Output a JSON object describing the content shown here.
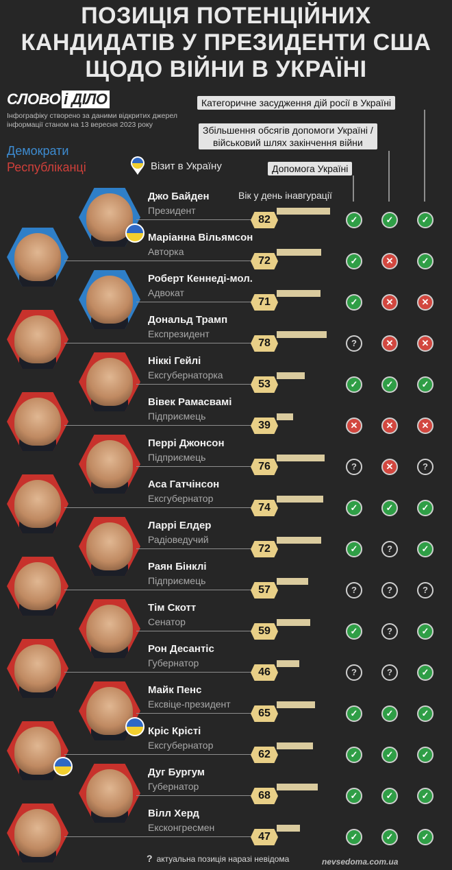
{
  "title": [
    "ПОЗИЦІЯ ПОТЕНЦІЙНИХ",
    "КАНДИДАТІВ У ПРЕЗИДЕНТИ США",
    "ЩОДО ВІЙНИ В УКРАЇНІ"
  ],
  "logo": {
    "part1": "СЛОВО",
    "part2": "і ДІЛО"
  },
  "source": [
    "Інфографіку створено за даними відкритих джерел",
    "інформації станом на 13 вересня 2023 року"
  ],
  "legend": {
    "democrats": "Демократи",
    "republicans": "Республіканці",
    "visit": "Візит в Україну"
  },
  "columns": {
    "condemn": "Категоричне засудження дій росії в Україні",
    "increase": [
      "Збільшення обсягів допомоги Україні /",
      "військовий шлях закінчення війни"
    ],
    "aid": "Допомога Україні",
    "age": "Вік у день інавгурації"
  },
  "colors": {
    "democrat": "#2f7fc8",
    "republican": "#c8322c",
    "yes": "#2f9e46",
    "no": "#d2473f",
    "age": "#e8cf87"
  },
  "candidates": [
    {
      "name": "Джо Байден",
      "role": "Президент",
      "party": "D",
      "age": "82",
      "visit": true,
      "aid": "yes",
      "increase": "yes",
      "condemn": "yes"
    },
    {
      "name": "Маріанна Вільямсон",
      "role": "Авторка",
      "party": "D",
      "age": "72",
      "visit": false,
      "aid": "yes",
      "increase": "no",
      "condemn": "yes"
    },
    {
      "name": "Роберт Кеннеді-мол.",
      "role": "Адвокат",
      "party": "D",
      "age": "71",
      "visit": false,
      "aid": "yes",
      "increase": "no",
      "condemn": "no"
    },
    {
      "name": "Дональд Трамп",
      "role": "Експрезидент",
      "party": "R",
      "age": "78",
      "visit": false,
      "aid": "unknown",
      "increase": "no",
      "condemn": "no"
    },
    {
      "name": "Ніккі Гейлі",
      "role": "Ексгубернаторка",
      "party": "R",
      "age": "53",
      "visit": false,
      "aid": "yes",
      "increase": "yes",
      "condemn": "yes"
    },
    {
      "name": "Вівек Рамасвамі",
      "role": "Підприємець",
      "party": "R",
      "age": "39",
      "visit": false,
      "aid": "no",
      "increase": "no",
      "condemn": "no"
    },
    {
      "name": "Перрі Джонсон",
      "role": "Підприємець",
      "party": "R",
      "age": "76",
      "visit": false,
      "aid": "unknown",
      "increase": "no",
      "condemn": "unknown"
    },
    {
      "name": "Аса Гатчінсон",
      "role": "Ексгубернатор",
      "party": "R",
      "age": "74",
      "visit": false,
      "aid": "yes",
      "increase": "yes",
      "condemn": "yes"
    },
    {
      "name": "Ларрі Елдер",
      "role": "Радіоведучий",
      "party": "R",
      "age": "72",
      "visit": false,
      "aid": "yes",
      "increase": "unknown",
      "condemn": "yes"
    },
    {
      "name": "Раян Бінклі",
      "role": "Підприємець",
      "party": "R",
      "age": "57",
      "visit": false,
      "aid": "unknown",
      "increase": "unknown",
      "condemn": "unknown"
    },
    {
      "name": "Тім Скотт",
      "role": "Сенатор",
      "party": "R",
      "age": "59",
      "visit": false,
      "aid": "yes",
      "increase": "unknown",
      "condemn": "yes"
    },
    {
      "name": "Рон Десантіс",
      "role": "Губернатор",
      "party": "R",
      "age": "46",
      "visit": false,
      "aid": "unknown",
      "increase": "unknown",
      "condemn": "yes"
    },
    {
      "name": "Майк Пенс",
      "role": "Ексвіце-президент",
      "party": "R",
      "age": "65",
      "visit": true,
      "aid": "yes",
      "increase": "yes",
      "condemn": "yes"
    },
    {
      "name": "Кріс Крісті",
      "role": "Ексгубернатор",
      "party": "R",
      "age": "62",
      "visit": true,
      "aid": "yes",
      "increase": "yes",
      "condemn": "yes"
    },
    {
      "name": "Дуг Бургум",
      "role": "Губернатор",
      "party": "R",
      "age": "68",
      "visit": false,
      "aid": "yes",
      "increase": "yes",
      "condemn": "yes"
    },
    {
      "name": "Вілл Херд",
      "role": "Ексконгресмен",
      "party": "R",
      "age": "47",
      "visit": false,
      "aid": "yes",
      "increase": "yes",
      "condemn": "yes"
    }
  ],
  "footnote": {
    "symbol": "?",
    "text": "актуальна позиція наразі невідома"
  },
  "watermark": "nevsedoma.com.ua"
}
